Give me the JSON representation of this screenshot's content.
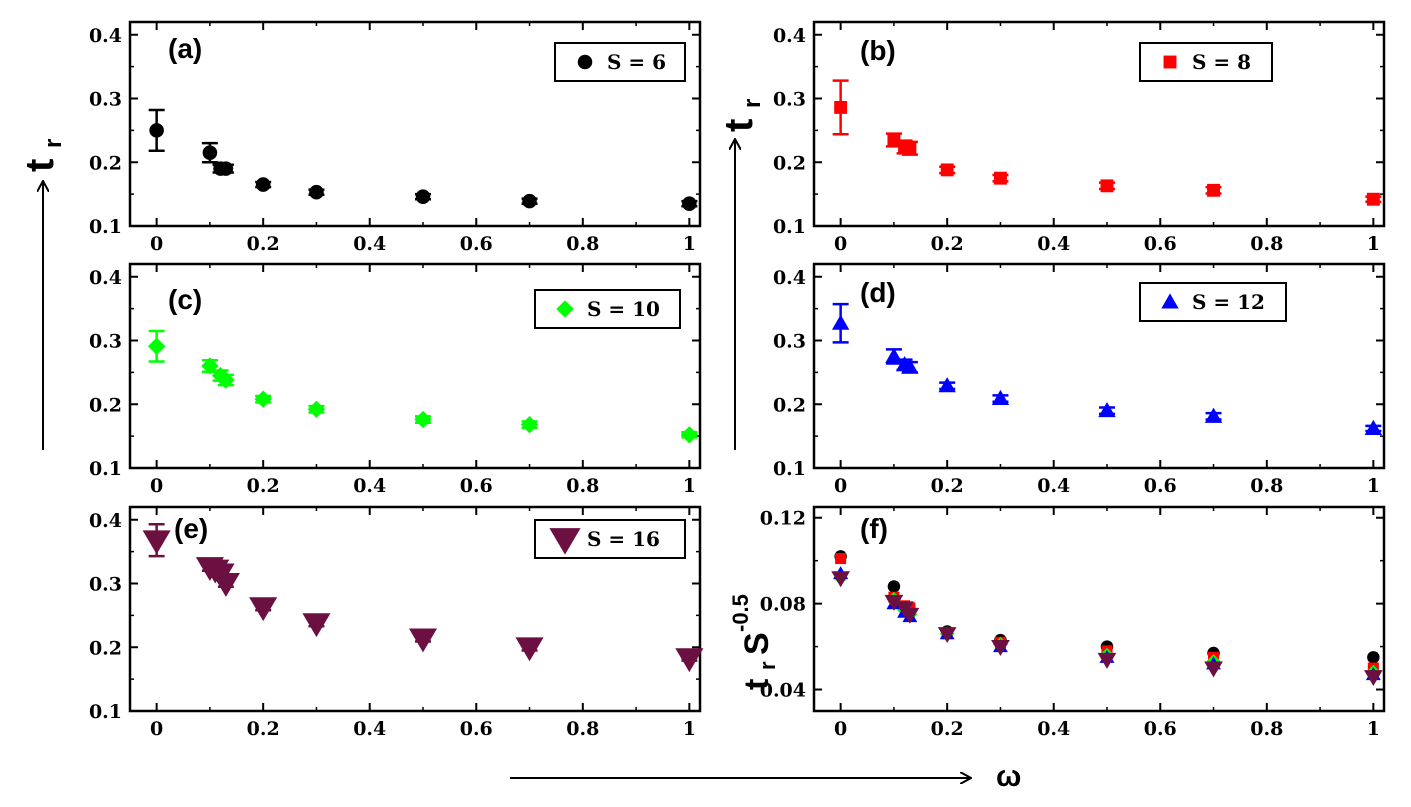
{
  "figure": {
    "x_axis_symbol": "ω",
    "y_axis_label_main": "t",
    "y_axis_label_sub": "r",
    "f_axis_label_main": "t",
    "f_axis_label_sub": "r",
    "f_axis_label_s": "S",
    "f_axis_label_exp": "-0.5"
  },
  "chart_data": [
    {
      "type": "scatter",
      "panel": "(a)",
      "legend": "S = 6",
      "color": "#000000",
      "marker": "circle",
      "xlim": [
        -0.05,
        1.02
      ],
      "ylim": [
        0.1,
        0.42
      ],
      "xticks": [
        "0",
        "0.2",
        "0.4",
        "0.6",
        "0.8",
        "1"
      ],
      "yticks": [
        "0.1",
        "0.2",
        "0.3",
        "0.4"
      ],
      "x": [
        0,
        0.1,
        0.12,
        0.13,
        0.2,
        0.3,
        0.5,
        0.7,
        1
      ],
      "y": [
        0.25,
        0.215,
        0.19,
        0.19,
        0.165,
        0.153,
        0.146,
        0.139,
        0.135
      ],
      "err": [
        0.032,
        0.015,
        0.006,
        0.006,
        0.004,
        0.004,
        0.004,
        0.004,
        0.004
      ]
    },
    {
      "type": "scatter",
      "panel": "(b)",
      "legend": "S = 8",
      "color": "#ff0000",
      "marker": "square",
      "xlim": [
        -0.05,
        1.02
      ],
      "ylim": [
        0.1,
        0.42
      ],
      "xticks": [
        "0",
        "0.2",
        "0.4",
        "0.6",
        "0.8",
        "1"
      ],
      "yticks": [
        "0.1",
        "0.2",
        "0.3",
        "0.4"
      ],
      "x": [
        0,
        0.1,
        0.12,
        0.13,
        0.2,
        0.3,
        0.5,
        0.7,
        1
      ],
      "y": [
        0.286,
        0.235,
        0.224,
        0.222,
        0.188,
        0.175,
        0.163,
        0.156,
        0.142
      ],
      "err": [
        0.042,
        0.01,
        0.01,
        0.01,
        0.005,
        0.005,
        0.005,
        0.005,
        0.004
      ]
    },
    {
      "type": "scatter",
      "panel": "(c)",
      "legend": "S = 10",
      "color": "#00ff00",
      "marker": "diamond",
      "xlim": [
        -0.05,
        1.02
      ],
      "ylim": [
        0.1,
        0.42
      ],
      "xticks": [
        "0",
        "0.2",
        "0.4",
        "0.6",
        "0.8",
        "1"
      ],
      "yticks": [
        "0.1",
        "0.2",
        "0.3",
        "0.4"
      ],
      "x": [
        0,
        0.1,
        0.12,
        0.13,
        0.2,
        0.3,
        0.5,
        0.7,
        1
      ],
      "y": [
        0.291,
        0.26,
        0.245,
        0.238,
        0.208,
        0.192,
        0.176,
        0.168,
        0.152
      ],
      "err": [
        0.024,
        0.009,
        0.008,
        0.008,
        0.005,
        0.005,
        0.005,
        0.005,
        0.004
      ]
    },
    {
      "type": "scatter",
      "panel": "(d)",
      "legend": "S = 12",
      "color": "#0000ff",
      "marker": "triangle-up",
      "xlim": [
        -0.05,
        1.02
      ],
      "ylim": [
        0.1,
        0.42
      ],
      "xticks": [
        "0",
        "0.2",
        "0.4",
        "0.6",
        "0.8",
        "1"
      ],
      "yticks": [
        "0.1",
        "0.2",
        "0.3",
        "0.4"
      ],
      "x": [
        0,
        0.1,
        0.12,
        0.13,
        0.2,
        0.3,
        0.5,
        0.7,
        1
      ],
      "y": [
        0.327,
        0.275,
        0.262,
        0.258,
        0.229,
        0.209,
        0.19,
        0.181,
        0.162
      ],
      "err": [
        0.03,
        0.011,
        0.008,
        0.008,
        0.005,
        0.005,
        0.005,
        0.005,
        0.004
      ]
    },
    {
      "type": "scatter",
      "panel": "(e)",
      "legend": "S = 16",
      "color": "#6b1040",
      "marker": "triangle-down",
      "xlim": [
        -0.05,
        1.02
      ],
      "ylim": [
        0.1,
        0.42
      ],
      "xticks": [
        "0",
        "0.2",
        "0.4",
        "0.6",
        "0.8",
        "1"
      ],
      "yticks": [
        "0.1",
        "0.2",
        "0.3",
        "0.4"
      ],
      "x": [
        0,
        0.1,
        0.11,
        0.12,
        0.13,
        0.2,
        0.3,
        0.5,
        0.7,
        1
      ],
      "y": [
        0.368,
        0.326,
        0.322,
        0.316,
        0.301,
        0.263,
        0.238,
        0.214,
        0.2,
        0.183
      ],
      "err": [
        0.025,
        0.006,
        0.006,
        0.006,
        0.006,
        0.005,
        0.005,
        0.005,
        0.005,
        0.004
      ]
    },
    {
      "type": "scatter",
      "panel": "(f)",
      "xlim": [
        -0.05,
        1.02
      ],
      "ylim": [
        0.03,
        0.125
      ],
      "xticks": [
        "0",
        "0.2",
        "0.4",
        "0.6",
        "0.8",
        "1"
      ],
      "yticks": [
        "0.04",
        "0.08",
        "0.12"
      ],
      "series": [
        {
          "name": "S = 6",
          "color": "#000000",
          "marker": "circle",
          "x": [
            0,
            0.1,
            0.12,
            0.13,
            0.2,
            0.3,
            0.5,
            0.7,
            1
          ],
          "y": [
            0.102,
            0.088,
            0.078,
            0.077,
            0.067,
            0.063,
            0.06,
            0.057,
            0.055
          ]
        },
        {
          "name": "S = 8",
          "color": "#ff0000",
          "marker": "square",
          "x": [
            0,
            0.1,
            0.12,
            0.13,
            0.2,
            0.3,
            0.5,
            0.7,
            1
          ],
          "y": [
            0.101,
            0.083,
            0.079,
            0.078,
            0.066,
            0.062,
            0.058,
            0.055,
            0.05
          ]
        },
        {
          "name": "S = 10",
          "color": "#00ff00",
          "marker": "diamond",
          "x": [
            0,
            0.1,
            0.12,
            0.13,
            0.2,
            0.3,
            0.5,
            0.7,
            1
          ],
          "y": [
            0.092,
            0.082,
            0.077,
            0.075,
            0.066,
            0.061,
            0.056,
            0.053,
            0.048
          ]
        },
        {
          "name": "S = 12",
          "color": "#0000ff",
          "marker": "triangle-up",
          "x": [
            0,
            0.1,
            0.12,
            0.13,
            0.2,
            0.3,
            0.5,
            0.7,
            1
          ],
          "y": [
            0.094,
            0.08,
            0.076,
            0.074,
            0.066,
            0.06,
            0.055,
            0.052,
            0.047
          ]
        },
        {
          "name": "S = 16",
          "color": "#6b1040",
          "marker": "triangle-down",
          "x": [
            0,
            0.1,
            0.12,
            0.13,
            0.2,
            0.3,
            0.5,
            0.7,
            1
          ],
          "y": [
            0.092,
            0.081,
            0.078,
            0.075,
            0.066,
            0.06,
            0.054,
            0.05,
            0.046
          ]
        }
      ]
    }
  ]
}
